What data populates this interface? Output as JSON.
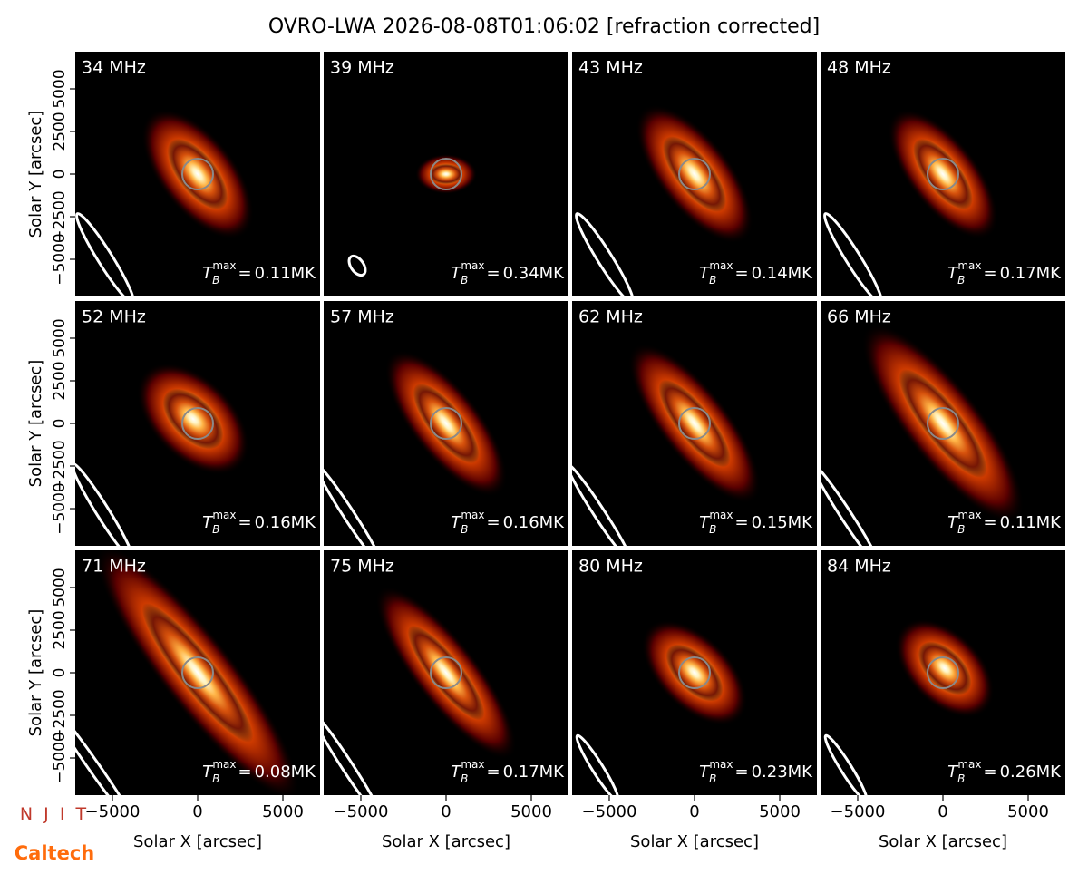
{
  "chart_data": {
    "type": "image",
    "title": "OVRO-LWA 2026-08-08T01:06:02 [refraction corrected]",
    "xlabel": "Solar X [arcsec]",
    "ylabel": "Solar Y [arcsec]",
    "xlim": [
      -7180,
      7180
    ],
    "ylim": [
      -7180,
      7180
    ],
    "xticks": [
      {
        "value": -5000,
        "label": "−5000"
      },
      0,
      5000
    ],
    "yticks": [
      {
        "value": -5000,
        "label": "−5000"
      },
      {
        "value": -2500,
        "label": "−2500"
      },
      0,
      2500,
      5000
    ],
    "tb_label": {
      "symbol": "T",
      "sub": "B",
      "sup": "max",
      "eq": "="
    },
    "panels": [
      {
        "label": "34 MHz",
        "tb_max": 0.11,
        "tb_max_label": "0.11MK"
      },
      {
        "label": "39 MHz",
        "tb_max": 0.34,
        "tb_max_label": "0.34MK"
      },
      {
        "label": "43 MHz",
        "tb_max": 0.14,
        "tb_max_label": "0.14MK"
      },
      {
        "label": "48 MHz",
        "tb_max": 0.17,
        "tb_max_label": "0.17MK"
      },
      {
        "label": "52 MHz",
        "tb_max": 0.16,
        "tb_max_label": "0.16MK"
      },
      {
        "label": "57 MHz",
        "tb_max": 0.16,
        "tb_max_label": "0.16MK"
      },
      {
        "label": "62 MHz",
        "tb_max": 0.15,
        "tb_max_label": "0.15MK"
      },
      {
        "label": "66 MHz",
        "tb_max": 0.11,
        "tb_max_label": "0.11MK"
      },
      {
        "label": "71 MHz",
        "tb_max": 0.08,
        "tb_max_label": "0.08MK"
      },
      {
        "label": "75 MHz",
        "tb_max": 0.17,
        "tb_max_label": "0.17MK"
      },
      {
        "label": "80 MHz",
        "tb_max": 0.23,
        "tb_max_label": "0.23MK"
      },
      {
        "label": "84 MHz",
        "tb_max": 0.26,
        "tb_max_label": "0.26MK"
      }
    ]
  },
  "logos": {
    "njit": "N J I T",
    "caltech": "Caltech"
  }
}
